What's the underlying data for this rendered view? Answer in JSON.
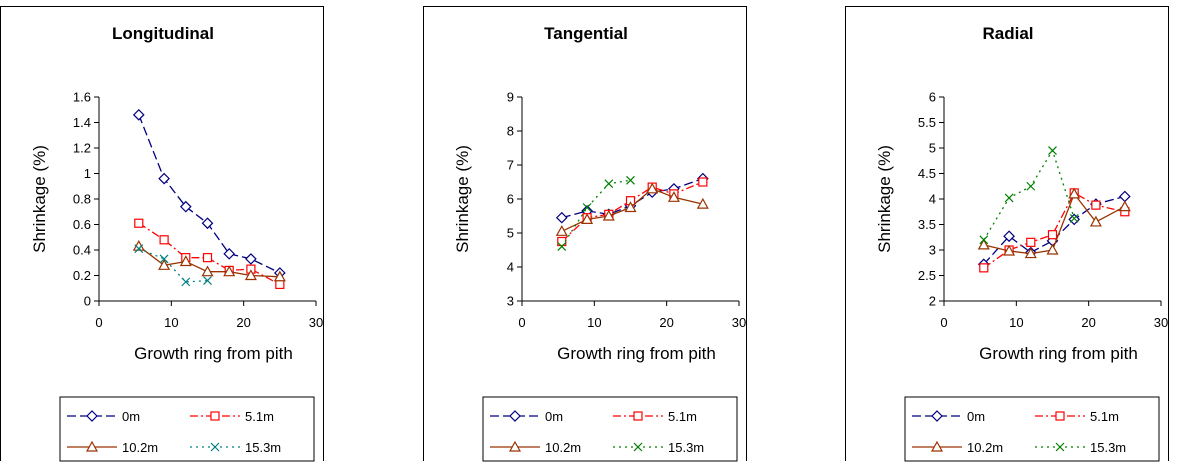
{
  "chart_data": [
    {
      "type": "line",
      "title": "Longitudinal",
      "xlabel": "Growth ring from pith",
      "ylabel": "Shrinkage (%)",
      "xlim": [
        0,
        30
      ],
      "ylim": [
        0,
        1.6
      ],
      "xticks": [
        0,
        10,
        20,
        30
      ],
      "yticks": [
        0,
        0.2,
        0.4,
        0.6,
        0.8,
        1,
        1.2,
        1.4,
        1.6
      ],
      "grid": false,
      "legend_position": "bottom",
      "series": [
        {
          "name": "0m",
          "color": "#000080",
          "dash": "dashed",
          "marker": "diamond",
          "x": [
            5.5,
            9,
            12,
            15,
            18,
            21,
            25
          ],
          "y": [
            1.46,
            0.96,
            0.74,
            0.61,
            0.37,
            0.33,
            0.22
          ]
        },
        {
          "name": "5.1m",
          "color": "#ff0000",
          "dash": "dashdot",
          "marker": "square",
          "x": [
            5.5,
            9,
            12,
            15,
            18,
            21,
            25
          ],
          "y": [
            0.61,
            0.48,
            0.34,
            0.34,
            0.24,
            0.25,
            0.13
          ]
        },
        {
          "name": "10.2m",
          "color": "#993300",
          "dash": "solid",
          "marker": "triangle",
          "x": [
            5.5,
            9,
            12,
            15,
            18,
            21,
            25
          ],
          "y": [
            0.43,
            0.28,
            0.31,
            0.23,
            0.23,
            0.2,
            0.19
          ]
        },
        {
          "name": "15.3m",
          "color": "#008080",
          "dash": "dotted",
          "marker": "x",
          "x": [
            5.5,
            9,
            12,
            15
          ],
          "y": [
            0.41,
            0.33,
            0.15,
            0.16
          ]
        }
      ]
    },
    {
      "type": "line",
      "title": "Tangential",
      "xlabel": "Growth ring from pith",
      "ylabel": "Shrinkage (%)",
      "xlim": [
        0,
        30
      ],
      "ylim": [
        3,
        9
      ],
      "xticks": [
        0,
        10,
        20,
        30
      ],
      "yticks": [
        3,
        4,
        5,
        6,
        7,
        8,
        9
      ],
      "grid": false,
      "legend_position": "bottom",
      "series": [
        {
          "name": "0m",
          "color": "#000080",
          "dash": "dashed",
          "marker": "diamond",
          "x": [
            5.5,
            9,
            12,
            15,
            18,
            21,
            25
          ],
          "y": [
            5.45,
            5.65,
            5.55,
            5.8,
            6.2,
            6.3,
            6.6
          ]
        },
        {
          "name": "5.1m",
          "color": "#ff0000",
          "dash": "dashdot",
          "marker": "square",
          "x": [
            5.5,
            9,
            12,
            15,
            18,
            21,
            25
          ],
          "y": [
            4.75,
            5.45,
            5.55,
            5.95,
            6.35,
            6.15,
            6.5
          ]
        },
        {
          "name": "10.2m",
          "color": "#993300",
          "dash": "solid",
          "marker": "triangle",
          "x": [
            5.5,
            9,
            12,
            15,
            18,
            21,
            25
          ],
          "y": [
            5.05,
            5.4,
            5.5,
            5.75,
            6.3,
            6.05,
            5.85
          ]
        },
        {
          "name": "15.3m",
          "color": "#008000",
          "dash": "dotted",
          "marker": "x",
          "x": [
            5.5,
            9,
            12,
            15
          ],
          "y": [
            4.6,
            5.75,
            6.45,
            6.55
          ]
        }
      ]
    },
    {
      "type": "line",
      "title": "Radial",
      "xlabel": "Growth ring from pith",
      "ylabel": "Shrinkage (%)",
      "xlim": [
        0,
        30
      ],
      "ylim": [
        2,
        6
      ],
      "xticks": [
        0,
        10,
        20,
        30
      ],
      "yticks": [
        2,
        2.5,
        3,
        3.5,
        4,
        4.5,
        5,
        5.5,
        6
      ],
      "grid": false,
      "legend_position": "bottom",
      "series": [
        {
          "name": "0m",
          "color": "#000080",
          "dash": "dashed",
          "marker": "diamond",
          "x": [
            5.5,
            9,
            12,
            15,
            18,
            21,
            25
          ],
          "y": [
            2.72,
            3.27,
            2.95,
            3.18,
            3.6,
            3.9,
            4.05
          ]
        },
        {
          "name": "5.1m",
          "color": "#ff0000",
          "dash": "dashdot",
          "marker": "square",
          "x": [
            5.5,
            9,
            12,
            15,
            18,
            21,
            25
          ],
          "y": [
            2.65,
            3.0,
            3.15,
            3.3,
            4.12,
            3.88,
            3.75
          ]
        },
        {
          "name": "10.2m",
          "color": "#993300",
          "dash": "solid",
          "marker": "triangle",
          "x": [
            5.5,
            9,
            12,
            15,
            18,
            21,
            25
          ],
          "y": [
            3.1,
            2.98,
            2.93,
            3.0,
            4.1,
            3.55,
            3.85
          ]
        },
        {
          "name": "15.3m",
          "color": "#008000",
          "dash": "dotted",
          "marker": "x",
          "x": [
            5.5,
            9,
            12,
            15,
            18
          ],
          "y": [
            3.2,
            4.02,
            4.25,
            4.95,
            3.62
          ]
        }
      ]
    }
  ]
}
